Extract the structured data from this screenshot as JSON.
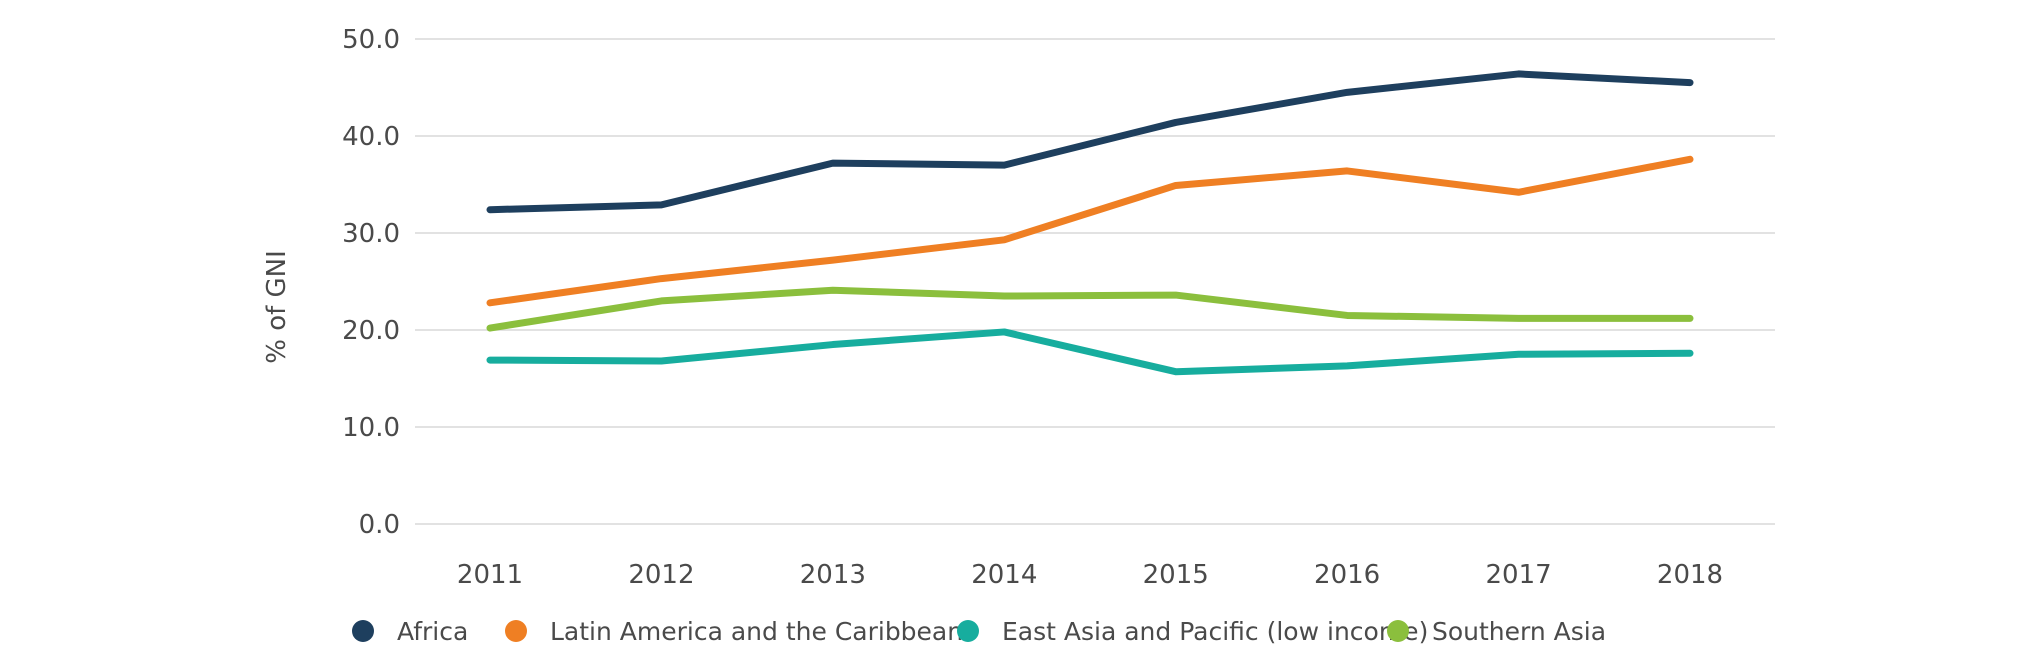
{
  "chart_data": {
    "type": "line",
    "title": "",
    "xlabel": "",
    "ylabel": "% of GNI",
    "x": [
      "2011",
      "2012",
      "2013",
      "2014",
      "2015",
      "2016",
      "2017",
      "2018"
    ],
    "ylim": [
      0,
      50
    ],
    "yticks": [
      "0.0",
      "10.0",
      "20.0",
      "30.0",
      "40.0",
      "50.0"
    ],
    "grid": "horizontal",
    "legend_position": "bottom",
    "series": [
      {
        "name": "Africa",
        "color": "#1e3f5e",
        "values": [
          32.4,
          32.9,
          37.2,
          37.0,
          41.4,
          44.5,
          46.4,
          45.5
        ]
      },
      {
        "name": "Latin America and the Caribbean",
        "color": "#ef7f23",
        "values": [
          22.8,
          25.3,
          27.2,
          29.3,
          34.9,
          36.4,
          34.2,
          37.6
        ]
      },
      {
        "name": "East Asia and Pacific (low income)",
        "color": "#17ad9e",
        "values": [
          16.9,
          16.8,
          18.5,
          19.8,
          15.7,
          16.3,
          17.5,
          17.6
        ]
      },
      {
        "name": "Southern Asia",
        "color": "#8bbf3d",
        "values": [
          20.2,
          23.0,
          24.1,
          23.5,
          23.6,
          21.5,
          21.2,
          21.2
        ]
      }
    ]
  }
}
